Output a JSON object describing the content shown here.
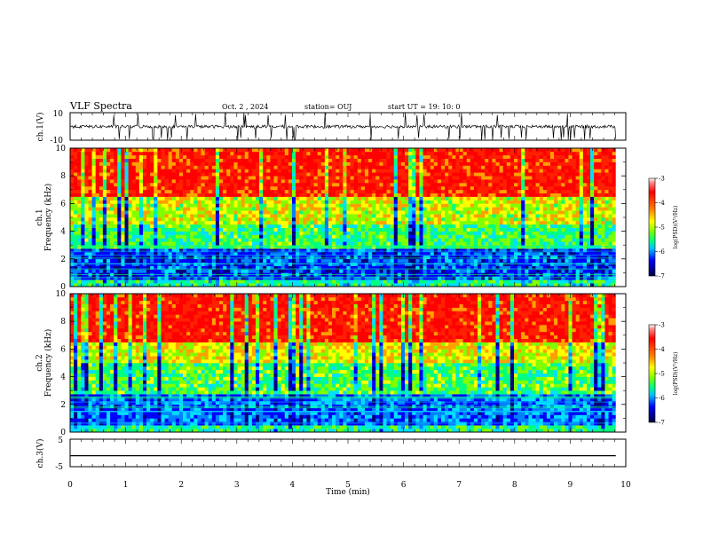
{
  "header": {
    "title": "VLF Spectra",
    "date": "Oct. 2 , 2024",
    "station": "station= OUJ",
    "start_ut": "start  UT =   19: 10: 0"
  },
  "chart_data": [
    {
      "type": "line",
      "panel": "ch1-waveform",
      "ylabel": "ch.1(V)",
      "ylim": [
        -10,
        10
      ],
      "yticks": [
        "10",
        "-10"
      ],
      "series": [
        {
          "baseline": 0,
          "band": [
            -1.2,
            1.0
          ],
          "spikes_to": [
            -10,
            10
          ]
        }
      ]
    },
    {
      "type": "heatmap",
      "panel": "ch1-spectrogram",
      "ylabel": "ch.1\nFrequency (kHz)",
      "ylim": [
        0,
        10
      ],
      "yticks": [
        "0",
        "2",
        "4",
        "6",
        "8",
        "10"
      ],
      "zlabel": "log(PSD)(V²/Hz)",
      "zlim": [
        -7,
        -3
      ],
      "zticks": [
        "-3",
        "-4",
        "-5",
        "-6",
        "-7"
      ],
      "colormap": [
        "#000080",
        "#0000ff",
        "#00c0ff",
        "#00ff80",
        "#80ff00",
        "#ffff00",
        "#ff8000",
        "#ff0000"
      ],
      "bands_khz": [
        {
          "from": 0.0,
          "to": 0.5,
          "log_psd": -5.3
        },
        {
          "from": 0.5,
          "to": 2.8,
          "log_psd": -6.2
        },
        {
          "from": 2.8,
          "to": 4.5,
          "log_psd": -5.1
        },
        {
          "from": 4.5,
          "to": 6.5,
          "log_psd": -4.5
        },
        {
          "from": 6.5,
          "to": 10.0,
          "log_psd": -3.4
        }
      ]
    },
    {
      "type": "heatmap",
      "panel": "ch2-spectrogram",
      "ylabel": "ch.2\nFrequency (kHz)",
      "ylim": [
        0,
        10
      ],
      "yticks": [
        "0",
        "2",
        "4",
        "6",
        "8",
        "10"
      ],
      "zlabel": "log(PSD)(V²/Hz)",
      "zlim": [
        -7,
        -3
      ],
      "zticks": [
        "-3",
        "-4",
        "-5",
        "-6",
        "-7"
      ],
      "bands_khz": [
        {
          "from": 0.0,
          "to": 0.5,
          "log_psd": -5.2
        },
        {
          "from": 0.5,
          "to": 2.8,
          "log_psd": -6.0
        },
        {
          "from": 2.8,
          "to": 5.0,
          "log_psd": -5.0
        },
        {
          "from": 5.0,
          "to": 6.5,
          "log_psd": -4.4
        },
        {
          "from": 6.5,
          "to": 10.0,
          "log_psd": -3.4
        }
      ]
    },
    {
      "type": "line",
      "panel": "ch3-waveform",
      "ylabel": "ch.3(V)",
      "ylim": [
        -5,
        5
      ],
      "yticks": [
        "5",
        "-5"
      ],
      "series": [
        {
          "constant": -1.0
        }
      ]
    }
  ],
  "xaxis": {
    "label": "Time (min)",
    "range": [
      0,
      10
    ],
    "data_end": 9.82,
    "ticks": [
      "0",
      "1",
      "2",
      "3",
      "4",
      "5",
      "6",
      "7",
      "8",
      "9",
      "10"
    ]
  },
  "colors": {
    "trace": "#000000",
    "axes": "#000000",
    "background": "#ffffff"
  }
}
